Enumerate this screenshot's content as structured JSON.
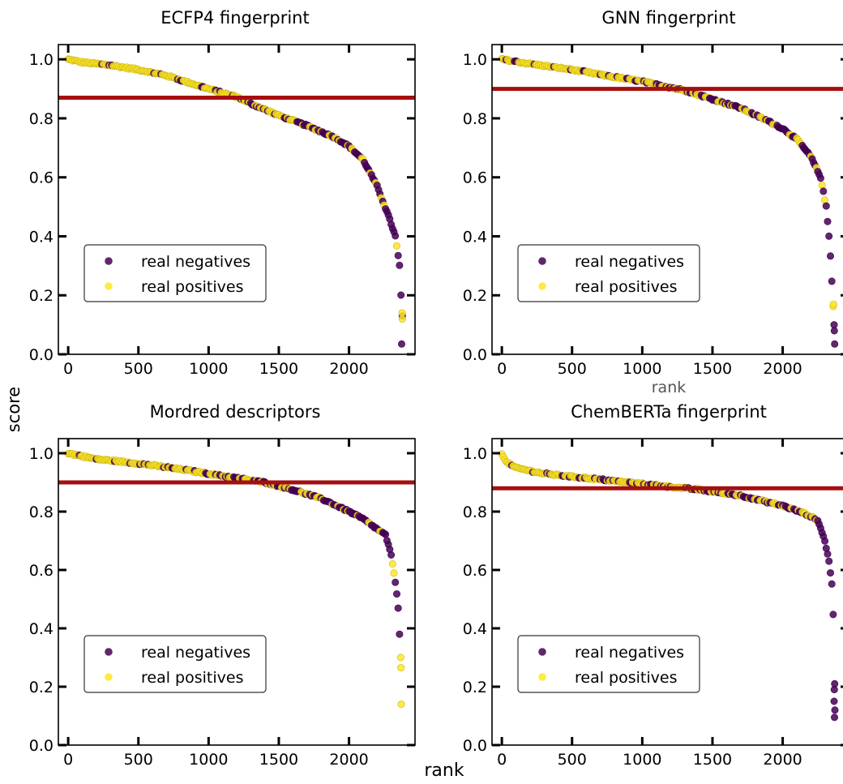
{
  "figure": {
    "ylabel": "score",
    "xlabel": "rank"
  },
  "colors": {
    "negative": "#440154",
    "positive": "#fde725",
    "threshold": "#a50f0f",
    "edge": "#000000"
  },
  "chart_data": [
    {
      "type": "scatter",
      "title": "ECFP4 fingerprint",
      "xlabel": "",
      "ylabel": "score",
      "xlim": [
        -70,
        2470
      ],
      "ylim": [
        0,
        1.05
      ],
      "xticks": [
        0,
        500,
        1000,
        1500,
        2000
      ],
      "yticks": [
        0.0,
        0.2,
        0.4,
        0.6,
        0.8,
        1.0
      ],
      "xtick_labels": [
        "0",
        "500",
        "1000",
        "1500",
        "2000"
      ],
      "ytick_labels": [
        "0.0",
        "0.2",
        "0.4",
        "0.6",
        "0.8",
        "1.0"
      ],
      "threshold": 0.87,
      "grid": false,
      "legend": {
        "placement": "lower-left",
        "entries": [
          "real negatives",
          "real positives"
        ]
      },
      "curve": [
        [
          0,
          1.0
        ],
        [
          100,
          0.99
        ],
        [
          300,
          0.98
        ],
        [
          500,
          0.965
        ],
        [
          700,
          0.945
        ],
        [
          900,
          0.915
        ],
        [
          1000,
          0.9
        ],
        [
          1200,
          0.873
        ],
        [
          1300,
          0.85
        ],
        [
          1500,
          0.81
        ],
        [
          1700,
          0.775
        ],
        [
          1900,
          0.735
        ],
        [
          2000,
          0.705
        ],
        [
          2100,
          0.66
        ],
        [
          2200,
          0.57
        ],
        [
          2280,
          0.47
        ],
        [
          2330,
          0.4
        ],
        [
          2360,
          0.3
        ],
        [
          2370,
          0.2
        ],
        [
          2380,
          0.13
        ]
      ],
      "outliers": [
        {
          "x": 2375,
          "y": 0.035,
          "cls": "negative"
        },
        {
          "x": 2380,
          "y": 0.12,
          "cls": "positive"
        },
        {
          "x": 2378,
          "y": 0.14,
          "cls": "positive"
        }
      ]
    },
    {
      "type": "scatter",
      "title": "GNN fingerprint",
      "xlabel": "rank",
      "ylabel": "score",
      "xlim": [
        -70,
        2470
      ],
      "ylim": [
        0,
        1.05
      ],
      "xticks": [
        0,
        500,
        1000,
        1500,
        2000
      ],
      "yticks": [
        0.0,
        0.2,
        0.4,
        0.6,
        0.8,
        1.0
      ],
      "xtick_labels": [
        "0",
        "500",
        "1000",
        "1500",
        "2000"
      ],
      "ytick_labels": [
        "0.0",
        "0.2",
        "0.4",
        "0.6",
        "0.8",
        "1.0"
      ],
      "threshold": 0.9,
      "grid": false,
      "legend": {
        "placement": "lower-left",
        "entries": [
          "real negatives",
          "real positives"
        ]
      },
      "curve": [
        [
          0,
          1.0
        ],
        [
          200,
          0.985
        ],
        [
          500,
          0.965
        ],
        [
          800,
          0.94
        ],
        [
          1000,
          0.925
        ],
        [
          1200,
          0.905
        ],
        [
          1300,
          0.895
        ],
        [
          1500,
          0.865
        ],
        [
          1700,
          0.835
        ],
        [
          1900,
          0.79
        ],
        [
          2000,
          0.765
        ],
        [
          2100,
          0.73
        ],
        [
          2200,
          0.67
        ],
        [
          2270,
          0.6
        ],
        [
          2310,
          0.5
        ],
        [
          2330,
          0.4
        ],
        [
          2345,
          0.3
        ],
        [
          2355,
          0.2
        ],
        [
          2362,
          0.15
        ]
      ],
      "outliers": [
        {
          "x": 2370,
          "y": 0.035,
          "cls": "negative"
        },
        {
          "x": 2368,
          "y": 0.08,
          "cls": "negative"
        },
        {
          "x": 2366,
          "y": 0.1,
          "cls": "negative"
        },
        {
          "x": 2362,
          "y": 0.17,
          "cls": "positive"
        }
      ]
    },
    {
      "type": "scatter",
      "title": "Mordred descriptors",
      "xlabel": "",
      "ylabel": "score",
      "xlim": [
        -70,
        2470
      ],
      "ylim": [
        0,
        1.05
      ],
      "xticks": [
        0,
        500,
        1000,
        1500,
        2000
      ],
      "yticks": [
        0.0,
        0.2,
        0.4,
        0.6,
        0.8,
        1.0
      ],
      "xtick_labels": [
        "0",
        "500",
        "1000",
        "1500",
        "2000"
      ],
      "ytick_labels": [
        "0.0",
        "0.2",
        "0.4",
        "0.6",
        "0.8",
        "1.0"
      ],
      "threshold": 0.9,
      "grid": false,
      "legend": {
        "placement": "lower-left",
        "entries": [
          "real negatives",
          "real positives"
        ]
      },
      "curve": [
        [
          0,
          1.0
        ],
        [
          200,
          0.98
        ],
        [
          500,
          0.965
        ],
        [
          800,
          0.945
        ],
        [
          1000,
          0.93
        ],
        [
          1200,
          0.915
        ],
        [
          1400,
          0.9
        ],
        [
          1600,
          0.875
        ],
        [
          1800,
          0.845
        ],
        [
          2000,
          0.8
        ],
        [
          2100,
          0.775
        ],
        [
          2200,
          0.74
        ],
        [
          2260,
          0.72
        ],
        [
          2300,
          0.65
        ],
        [
          2330,
          0.56
        ],
        [
          2350,
          0.47
        ],
        [
          2360,
          0.38
        ]
      ],
      "outliers": [
        {
          "x": 2368,
          "y": 0.3,
          "cls": "positive"
        },
        {
          "x": 2370,
          "y": 0.265,
          "cls": "positive"
        },
        {
          "x": 2372,
          "y": 0.14,
          "cls": "positive"
        }
      ]
    },
    {
      "type": "scatter",
      "title": "ChemBERTa fingerprint",
      "xlabel": "",
      "ylabel": "score",
      "xlim": [
        -70,
        2470
      ],
      "ylim": [
        0,
        1.05
      ],
      "xticks": [
        0,
        500,
        1000,
        1500,
        2000
      ],
      "yticks": [
        0.0,
        0.2,
        0.4,
        0.6,
        0.8,
        1.0
      ],
      "xtick_labels": [
        "0",
        "500",
        "1000",
        "1500",
        "2000"
      ],
      "ytick_labels": [
        "0.0",
        "0.2",
        "0.4",
        "0.6",
        "0.8",
        "1.0"
      ],
      "threshold": 0.88,
      "grid": false,
      "legend": {
        "placement": "lower-left",
        "entries": [
          "real negatives",
          "real positives"
        ]
      },
      "curve": [
        [
          0,
          1.0
        ],
        [
          30,
          0.97
        ],
        [
          100,
          0.95
        ],
        [
          300,
          0.93
        ],
        [
          600,
          0.915
        ],
        [
          1000,
          0.895
        ],
        [
          1400,
          0.875
        ],
        [
          1700,
          0.855
        ],
        [
          2000,
          0.82
        ],
        [
          2150,
          0.795
        ],
        [
          2250,
          0.77
        ],
        [
          2300,
          0.7
        ],
        [
          2330,
          0.63
        ],
        [
          2350,
          0.55
        ],
        [
          2360,
          0.45
        ],
        [
          2365,
          0.38
        ]
      ],
      "outliers": [
        {
          "x": 2370,
          "y": 0.21,
          "cls": "negative"
        },
        {
          "x": 2368,
          "y": 0.19,
          "cls": "negative"
        },
        {
          "x": 2366,
          "y": 0.15,
          "cls": "negative"
        },
        {
          "x": 2372,
          "y": 0.12,
          "cls": "negative"
        },
        {
          "x": 2369,
          "y": 0.095,
          "cls": "negative"
        }
      ]
    }
  ]
}
